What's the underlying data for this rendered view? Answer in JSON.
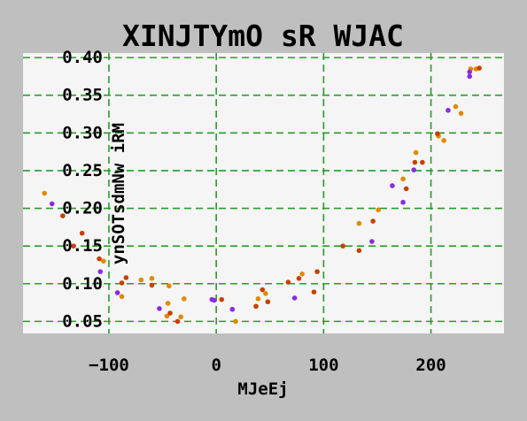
{
  "chart_data": {
    "type": "scatter",
    "title": "XINJTYmO sR WJAC",
    "xlabel": "MJeEj",
    "ylabel": "ynSOTsdmNw iRM",
    "xlim": [
      -180,
      268
    ],
    "ylim": [
      0.034,
      0.406
    ],
    "x_ticks": [
      -100,
      0,
      100,
      200
    ],
    "y_ticks": [
      0.05,
      0.1,
      0.15,
      0.2,
      0.25,
      0.3,
      0.35,
      0.4
    ],
    "x_tick_labels": [
      "−100",
      "0",
      "100",
      "200"
    ],
    "y_tick_labels": [
      "0.05",
      "0.10",
      "0.15",
      "0.20",
      "0.25",
      "0.30",
      "0.35",
      "0.40"
    ],
    "grid": true,
    "colors": {
      "orange": "#e08a00",
      "red": "#c84000",
      "purple": "#8a2be2",
      "grid": "#2a9a2a",
      "plot_bg": "#f5f5f5",
      "page_bg": "#bfbfbf"
    },
    "series": [
      {
        "color": "#e08a00",
        "points": [
          [
            -160,
            0.22
          ],
          [
            -105,
            0.13
          ],
          [
            -88,
            0.083
          ],
          [
            -70,
            0.105
          ],
          [
            -60,
            0.107
          ],
          [
            -44,
            0.097
          ],
          [
            -45,
            0.074
          ],
          [
            -46,
            0.057
          ],
          [
            -33,
            0.056
          ],
          [
            -30,
            0.08
          ],
          [
            18,
            0.05
          ],
          [
            37,
            0.07
          ],
          [
            39,
            0.08
          ],
          [
            46,
            0.087
          ],
          [
            80,
            0.113
          ],
          [
            133,
            0.18
          ],
          [
            151,
            0.198
          ],
          [
            174,
            0.239
          ],
          [
            186,
            0.274
          ],
          [
            207,
            0.296
          ],
          [
            212,
            0.29
          ],
          [
            223,
            0.335
          ],
          [
            228,
            0.326
          ],
          [
            237,
            0.385
          ],
          [
            242,
            0.385
          ]
        ]
      },
      {
        "color": "#c84000",
        "points": [
          [
            -143,
            0.19
          ],
          [
            -133,
            0.15
          ],
          [
            -125,
            0.167
          ],
          [
            -109,
            0.133
          ],
          [
            -88,
            0.101
          ],
          [
            -84,
            0.108
          ],
          [
            -60,
            0.098
          ],
          [
            -43,
            0.061
          ],
          [
            -36,
            0.05
          ],
          [
            5,
            0.079
          ],
          [
            37,
            0.07
          ],
          [
            43,
            0.092
          ],
          [
            48,
            0.076
          ],
          [
            67,
            0.102
          ],
          [
            77,
            0.107
          ],
          [
            91,
            0.089
          ],
          [
            94,
            0.116
          ],
          [
            118,
            0.15
          ],
          [
            133,
            0.144
          ],
          [
            146,
            0.183
          ],
          [
            177,
            0.226
          ],
          [
            185,
            0.261
          ],
          [
            192,
            0.261
          ],
          [
            206,
            0.299
          ],
          [
            245,
            0.386
          ]
        ]
      },
      {
        "color": "#8a2be2",
        "points": [
          [
            -153,
            0.206
          ],
          [
            -108,
            0.116
          ],
          [
            -92,
            0.088
          ],
          [
            -53,
            0.067
          ],
          [
            -4,
            0.079
          ],
          [
            -2,
            0.078
          ],
          [
            15,
            0.066
          ],
          [
            73,
            0.081
          ],
          [
            145,
            0.156
          ],
          [
            164,
            0.23
          ],
          [
            174,
            0.208
          ],
          [
            184,
            0.251
          ],
          [
            216,
            0.33
          ],
          [
            236,
            0.381
          ],
          [
            236,
            0.375
          ]
        ]
      }
    ]
  }
}
